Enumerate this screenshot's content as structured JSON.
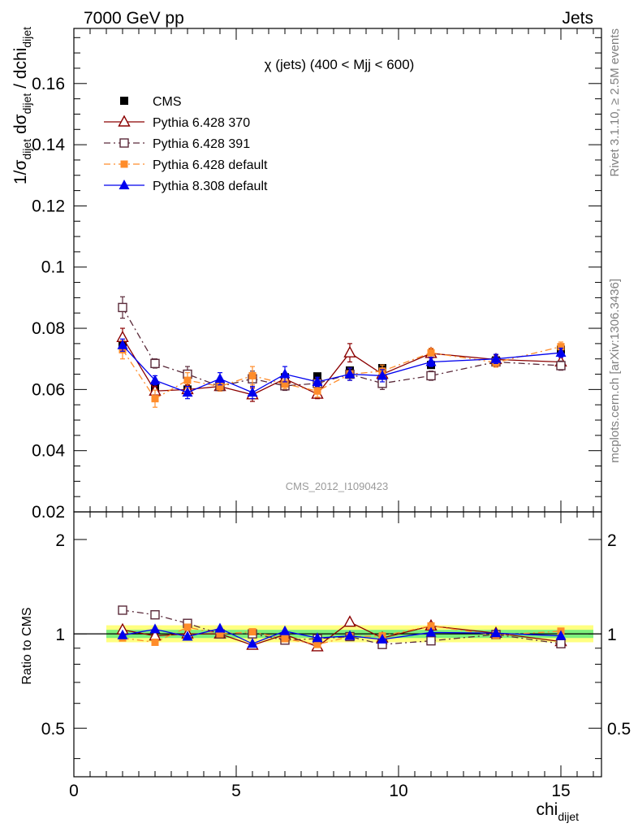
{
  "header": {
    "left": "7000 GeV pp",
    "right": "Jets"
  },
  "side_labels": {
    "rivet": "Rivet 3.1.10, ≥ 2.5M events",
    "mcplots": "mcplots.cern.ch [arXiv:1306.3436]"
  },
  "colors": {
    "cms": "#000000",
    "p370": "#8b0000",
    "p391": "#5a2a3a",
    "p6def": "#ff8c2a",
    "p8def": "#0000ee",
    "band_inner": "#7df07d",
    "band_outer": "#ffff80"
  },
  "chart_data": [
    {
      "type": "scatter",
      "title": "χ (jets) (400 < Mjj <  600)",
      "watermark": "CMS_2012_I1090423",
      "ylabel": {
        "main": "1/σ",
        "sub1": "dijet",
        "mid": " dσ",
        "sub2": "dijet",
        "tail": " / dchi",
        "sub3": "dijet"
      },
      "xlim": [
        0,
        16.25
      ],
      "ylim": [
        0.02,
        0.178
      ],
      "yticks": [
        0.02,
        0.04,
        0.06,
        0.08,
        0.1,
        0.12,
        0.14,
        0.16
      ],
      "ytick_labels": [
        "0.02",
        "0.04",
        "0.06",
        "0.08",
        "0.1",
        "0.12",
        "0.14",
        "0.16"
      ],
      "x": [
        1.5,
        2.5,
        3.5,
        4.5,
        5.5,
        6.5,
        7.5,
        8.5,
        9.5,
        11,
        13,
        15
      ],
      "series": [
        {
          "name": "CMS",
          "color_key": "cms",
          "marker": "square-filled",
          "line": "none",
          "values": [
            0.075,
            0.0605,
            0.06,
            0.061,
            0.0635,
            0.064,
            0.0643,
            0.0662,
            0.067,
            0.068,
            0.0695,
            0.073
          ]
        },
        {
          "name": "Pythia 6.428 370",
          "color_key": "p370",
          "marker": "triangle-open",
          "line": "solid",
          "values": [
            0.077,
            0.0595,
            0.06,
            0.061,
            0.0583,
            0.0635,
            0.0585,
            0.072,
            0.065,
            0.0718,
            0.0698,
            0.069
          ],
          "errors": [
            0.003,
            0.0015,
            0.0015,
            0.0015,
            0.0022,
            0.0015,
            0.0015,
            0.003,
            0.002,
            0.0015,
            0.0015,
            0.0015
          ]
        },
        {
          "name": "Pythia 6.428 391",
          "color_key": "p391",
          "marker": "square-open",
          "line": "dashdot",
          "values": [
            0.0868,
            0.0685,
            0.065,
            0.061,
            0.0635,
            0.0612,
            0.062,
            0.065,
            0.062,
            0.0645,
            0.069,
            0.0678
          ],
          "errors": [
            0.0035,
            0.0015,
            0.0025,
            0.0015,
            0.0025,
            0.0015,
            0.0015,
            0.002,
            0.002,
            0.0015,
            0.0015,
            0.0015
          ]
        },
        {
          "name": "Pythia 6.428 default",
          "color_key": "p6def",
          "marker": "square-filled-small",
          "line": "dashdot",
          "values": [
            0.073,
            0.057,
            0.063,
            0.061,
            0.0645,
            0.0618,
            0.0595,
            0.065,
            0.066,
            0.072,
            0.0688,
            0.074
          ],
          "errors": [
            0.003,
            0.0028,
            0.0025,
            0.0015,
            0.003,
            0.0015,
            0.002,
            0.002,
            0.002,
            0.0015,
            0.0015,
            0.0015
          ]
        },
        {
          "name": "Pythia 8.308 default",
          "color_key": "p8def",
          "marker": "triangle-filled",
          "line": "solid",
          "values": [
            0.0745,
            0.063,
            0.059,
            0.0635,
            0.059,
            0.065,
            0.0625,
            0.065,
            0.0645,
            0.069,
            0.07,
            0.072
          ],
          "errors": [
            0.002,
            0.0015,
            0.002,
            0.002,
            0.002,
            0.0025,
            0.0015,
            0.002,
            0.002,
            0.0015,
            0.0015,
            0.0015
          ]
        }
      ]
    },
    {
      "type": "scatter",
      "ylabel": "Ratio to CMS",
      "xlabel": {
        "main": "chi",
        "sub": "dijet"
      },
      "xlim": [
        0,
        16.25
      ],
      "ylim": [
        0.35,
        2.45
      ],
      "log_y": true,
      "xticks": [
        0,
        5,
        10,
        15
      ],
      "xtick_labels": [
        "0",
        "5",
        "10",
        "15"
      ],
      "yticks": [
        0.5,
        1,
        2
      ],
      "ytick_labels": [
        "0.5",
        "1",
        "2"
      ],
      "band": {
        "x_range": [
          1,
          16
        ],
        "inner": [
          0.97,
          1.03
        ],
        "outer": [
          0.94,
          1.065
        ]
      },
      "reference": 1,
      "x": [
        1.5,
        2.5,
        3.5,
        4.5,
        5.5,
        6.5,
        7.5,
        8.5,
        9.5,
        11,
        13,
        15
      ],
      "series": [
        {
          "name": "Pythia 6.428 370",
          "color_key": "p370",
          "marker": "triangle-open",
          "line": "solid",
          "values": [
            1.03,
            0.985,
            1.0,
            1.0,
            0.92,
            0.995,
            0.91,
            1.09,
            0.97,
            1.06,
            1.005,
            0.945
          ]
        },
        {
          "name": "Pythia 6.428 391",
          "color_key": "p391",
          "marker": "square-open",
          "line": "dashdot",
          "values": [
            1.19,
            1.15,
            1.08,
            1.0,
            1.0,
            0.955,
            0.965,
            0.98,
            0.925,
            0.95,
            0.995,
            0.93
          ]
        },
        {
          "name": "Pythia 6.428 default",
          "color_key": "p6def",
          "marker": "square-filled-small",
          "line": "dashdot",
          "values": [
            0.97,
            0.94,
            1.05,
            1.0,
            1.015,
            0.965,
            0.925,
            0.98,
            0.985,
            1.06,
            0.99,
            1.02
          ]
        },
        {
          "name": "Pythia 8.308 default",
          "color_key": "p8def",
          "marker": "triangle-filled",
          "line": "solid",
          "values": [
            0.99,
            1.035,
            0.98,
            1.04,
            0.93,
            1.02,
            0.97,
            0.985,
            0.96,
            1.01,
            1.005,
            0.985
          ]
        }
      ]
    }
  ]
}
